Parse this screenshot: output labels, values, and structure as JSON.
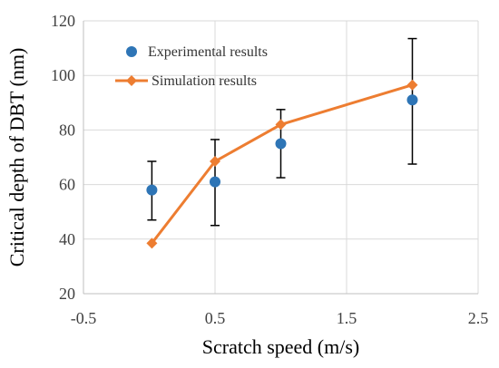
{
  "chart_data": {
    "type": "scatter",
    "xlabel": "Scratch speed (m/s)",
    "ylabel": "Critical depth of DBT (nm)",
    "xlim": [
      -0.5,
      2.5
    ],
    "ylim": [
      20,
      120
    ],
    "xticks": [
      -0.5,
      0.5,
      1.5,
      2.5
    ],
    "xtick_labels": [
      "-0.5",
      "0.5",
      "1.5",
      "2.5"
    ],
    "yticks": [
      20,
      40,
      60,
      80,
      100,
      120
    ],
    "ytick_labels": [
      "20",
      "40",
      "60",
      "80",
      "100",
      "120"
    ],
    "grid": true,
    "legend_position": "top-left",
    "series": [
      {
        "name": "Experimental results",
        "kind": "scatter",
        "marker": "circle",
        "color": "#2E75B6",
        "x": [
          0.02,
          0.5,
          1.0,
          2.0
        ],
        "y": [
          58,
          61,
          75,
          91
        ],
        "err_low": [
          47,
          45,
          62.5,
          67.5
        ],
        "err_high": [
          68.5,
          76.5,
          87.5,
          113.5
        ]
      },
      {
        "name": "Simulation results",
        "kind": "line",
        "marker": "diamond",
        "color": "#ED7D31",
        "x": [
          0.02,
          0.5,
          1.0,
          2.0
        ],
        "y": [
          38.5,
          68.5,
          82,
          96.5
        ]
      }
    ]
  }
}
